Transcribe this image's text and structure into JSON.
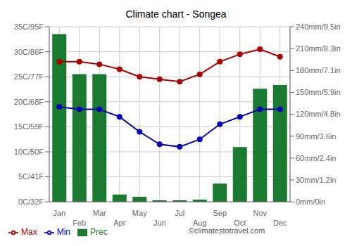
{
  "chart_data": {
    "type": "combo",
    "title": "Climate chart - Songea",
    "categories": [
      "Jan",
      "Feb",
      "Mar",
      "Apr",
      "May",
      "Jun",
      "Jul",
      "Aug",
      "Sep",
      "Oct",
      "Nov",
      "Dec"
    ],
    "series": [
      {
        "name": "Prec",
        "type": "bar",
        "axis": "y2",
        "color": "#1a7a30",
        "values": [
          230,
          175,
          175,
          10,
          7,
          2,
          2,
          3,
          25,
          75,
          155,
          160
        ]
      },
      {
        "name": "Min",
        "type": "line",
        "color": "#0000bb",
        "marker": "circle",
        "values": [
          19.0,
          18.5,
          18.5,
          17.0,
          14.0,
          11.5,
          11.0,
          12.5,
          15.5,
          17.0,
          18.5,
          18.5
        ]
      },
      {
        "name": "Max",
        "type": "line",
        "color": "#aa0000",
        "marker": "circle",
        "values": [
          28.0,
          28.0,
          27.5,
          26.5,
          25.0,
          24.5,
          24.0,
          25.5,
          28.0,
          29.5,
          30.5,
          29.0
        ]
      }
    ],
    "ylim": [
      0,
      35
    ],
    "yticks": [
      {
        "value": 0,
        "label": "0C/32F"
      },
      {
        "value": 5,
        "label": "5C/41F"
      },
      {
        "value": 10,
        "label": "10C/50F"
      },
      {
        "value": 15,
        "label": "15C/59F"
      },
      {
        "value": 20,
        "label": "20C/68F"
      },
      {
        "value": 25,
        "label": "25C/77F"
      },
      {
        "value": 30,
        "label": "30C/86F"
      },
      {
        "value": 35,
        "label": "35C/95F"
      }
    ],
    "y2lim": [
      0,
      240
    ],
    "y2ticks": [
      {
        "value": 0,
        "label": "0mm/0in"
      },
      {
        "value": 30,
        "label": "30mm/1.2in"
      },
      {
        "value": 60,
        "label": "60mm/2.4in"
      },
      {
        "value": 90,
        "label": "90mm/3.6in"
      },
      {
        "value": 120,
        "label": "120mm/4.8in"
      },
      {
        "value": 150,
        "label": "150mm/5.9in"
      },
      {
        "value": 180,
        "label": "180mm/7.1in"
      },
      {
        "value": 210,
        "label": "210mm/8.3in"
      },
      {
        "value": 240,
        "label": "240mm/9.5in"
      }
    ],
    "grid": true,
    "legend": "lower left",
    "annotations": [
      "©climatestotravel.com"
    ]
  }
}
